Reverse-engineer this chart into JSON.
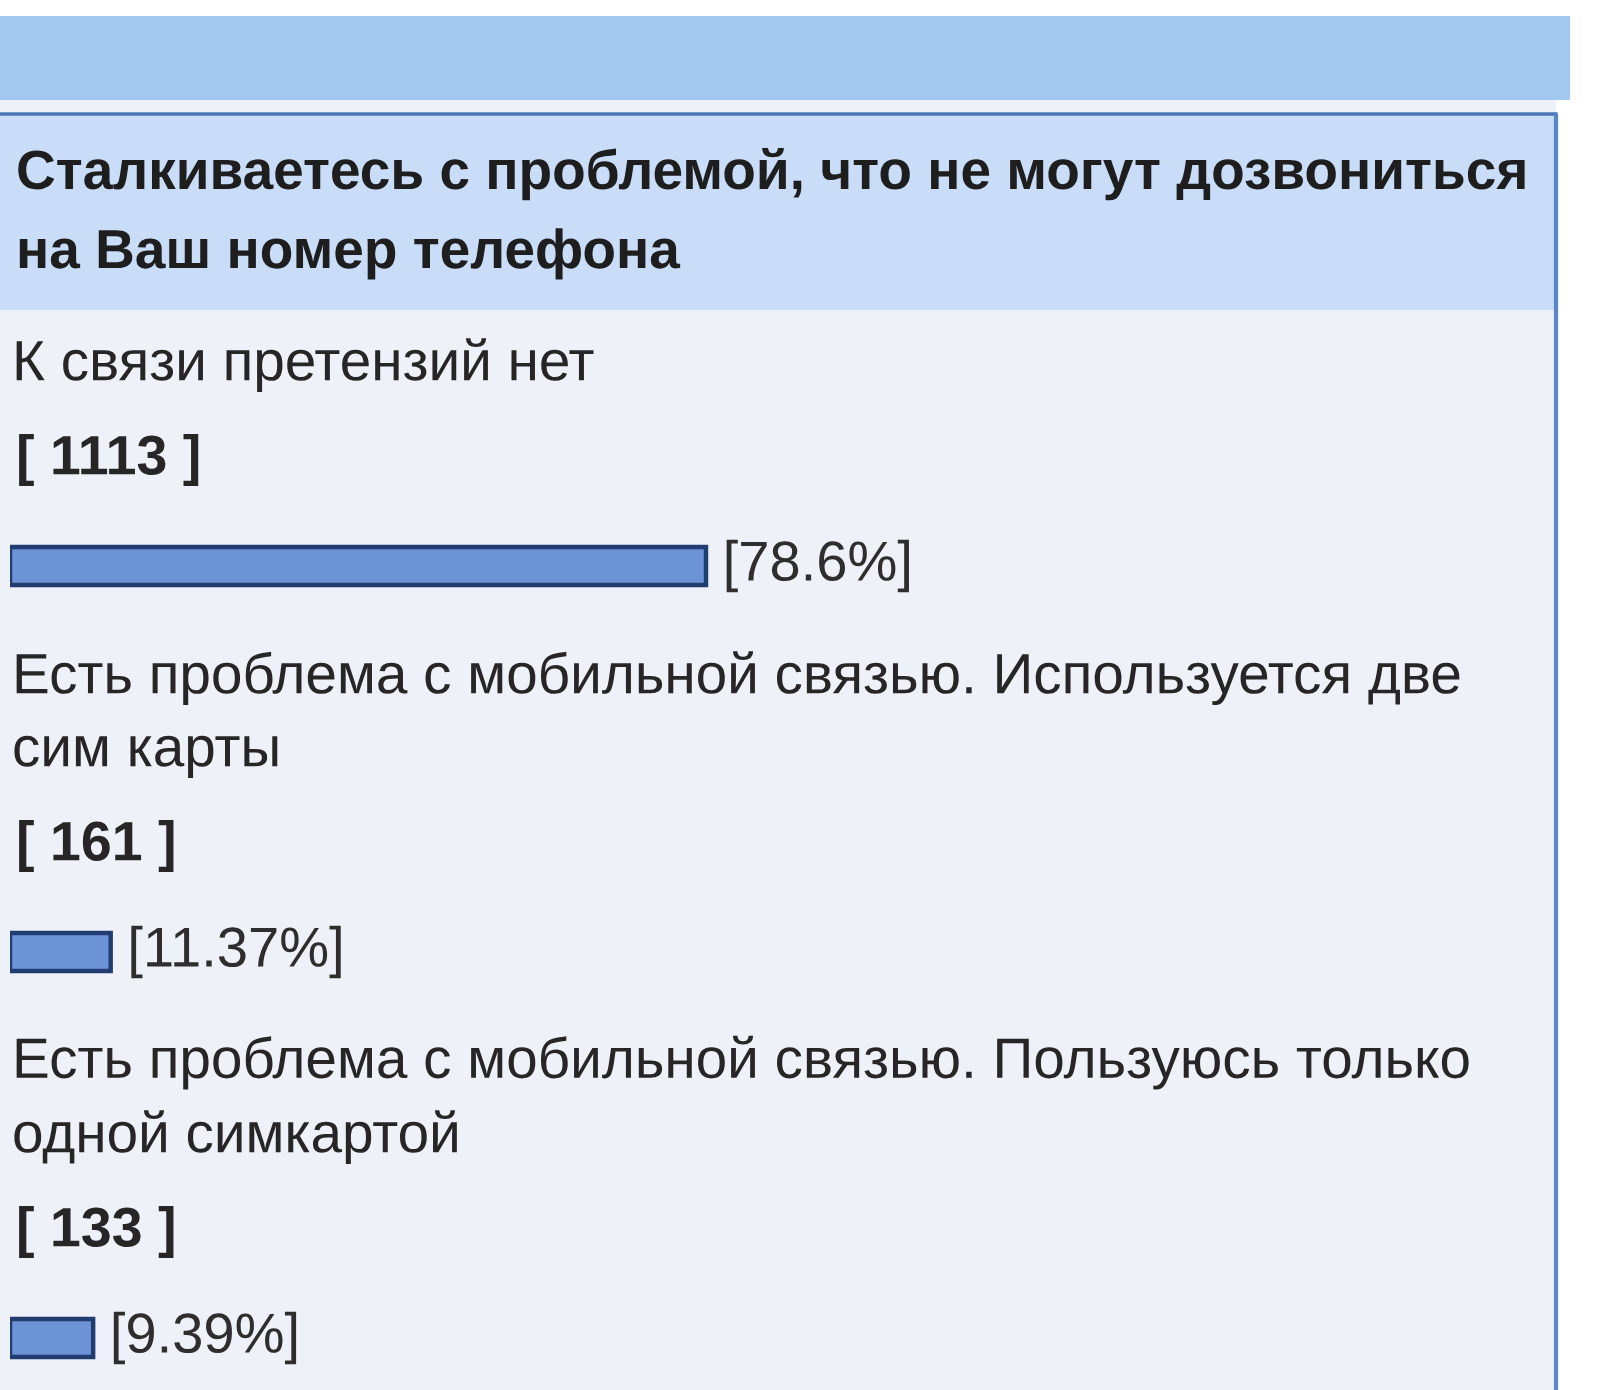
{
  "chart_data": {
    "type": "bar",
    "orientation": "horizontal",
    "title": "Сталкиваетесь с проблемой, что не могут дозвониться на Ваш номер телефона",
    "categories": [
      "К связи претензий нет",
      "Есть проблема с мобильной связью. Используется две сим карты",
      "Есть проблема с мобильной связью. Пользуюсь только одной симкартой"
    ],
    "values": [
      78.6,
      11.37,
      9.39
    ],
    "color": "#6b93d6",
    "value_labels": [
      "[78.6%]",
      "[11.37%]",
      "[9.39%]"
    ],
    "annotations": [
      "[ 1113 ]",
      "[ 161 ]",
      "[ 133 ]"
    ],
    "tick_labels": "y"
  }
}
